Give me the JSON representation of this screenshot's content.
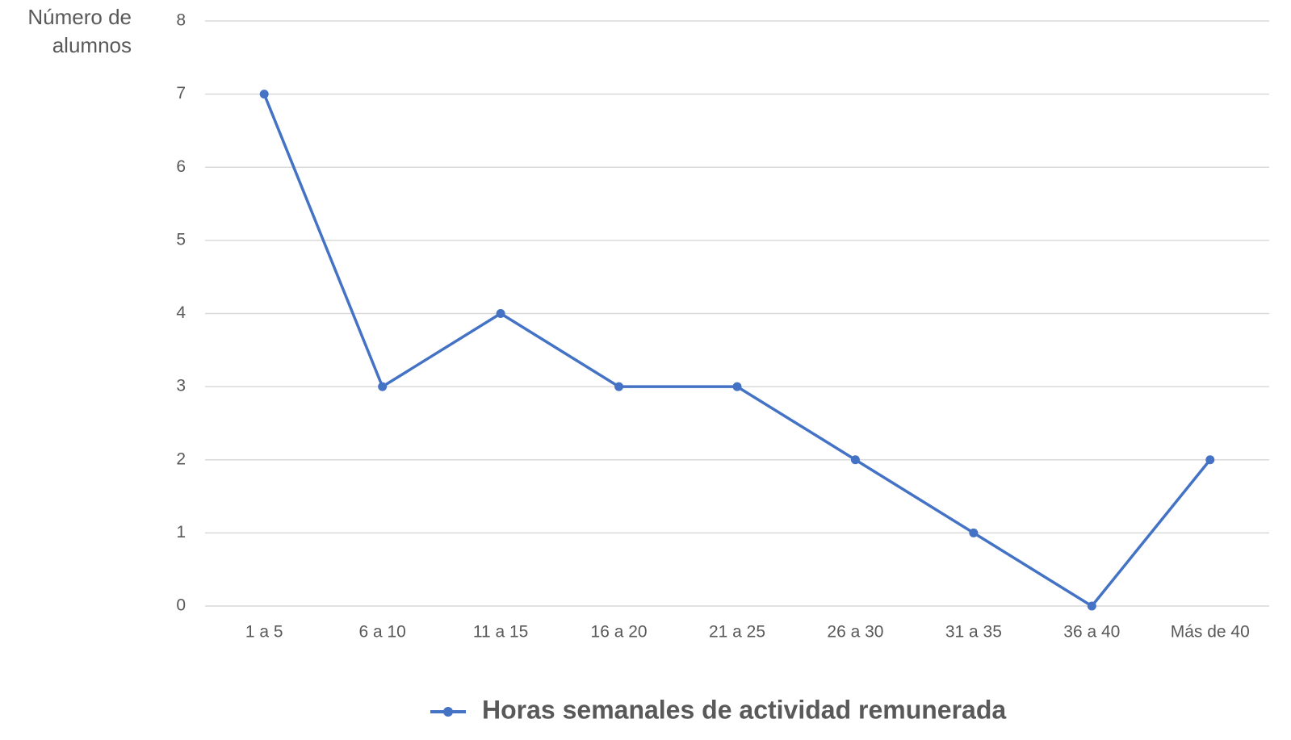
{
  "chart_data": {
    "type": "line",
    "y_label": [
      "Número de",
      "alumnos"
    ],
    "categories": [
      "1 a 5",
      "6 a 10",
      "11 a 15",
      "16 a 20",
      "21 a 25",
      "26 a 30",
      "31 a 35",
      "36 a 40",
      "Más de 40"
    ],
    "series": [
      {
        "name": "Horas semanales de actividad remunerada",
        "color": "#4472c4",
        "values": [
          7,
          3,
          4,
          3,
          3,
          2,
          1,
          0,
          2
        ]
      }
    ],
    "ylim": [
      0,
      8
    ],
    "yticks": [
      0,
      1,
      2,
      3,
      4,
      5,
      6,
      7,
      8
    ],
    "grid": true,
    "legend": "bottom"
  }
}
